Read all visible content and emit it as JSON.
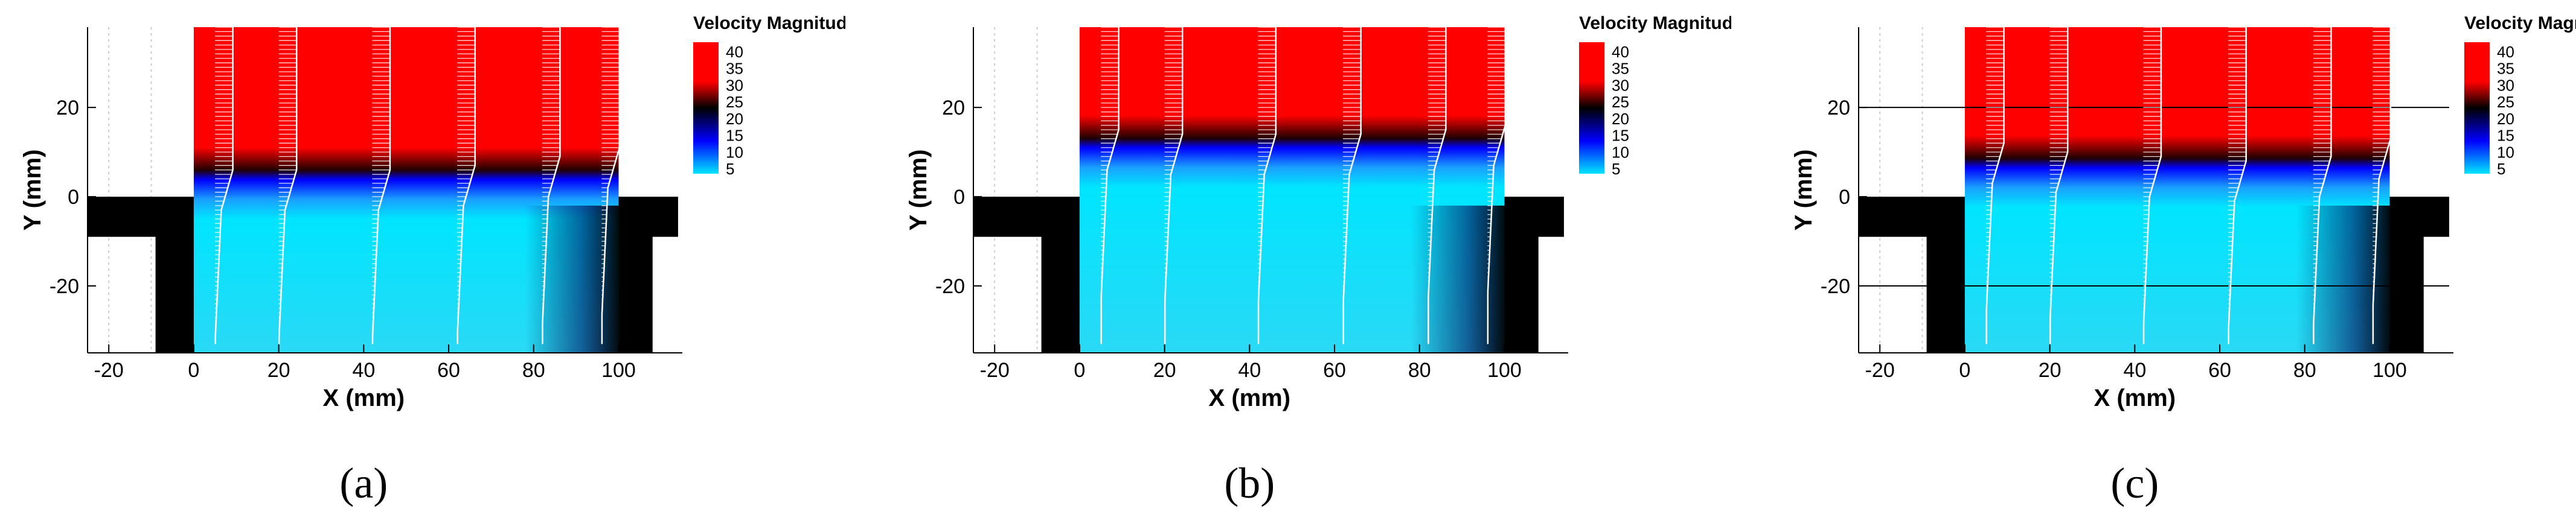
{
  "chart_data": [
    {
      "type": "heatmap",
      "panel_label": "(a)",
      "xlabel": "X (mm)",
      "ylabel": "Y (mm)",
      "xlim": [
        -25,
        115
      ],
      "ylim": [
        -35,
        38
      ],
      "xticks": [
        -20,
        0,
        20,
        40,
        60,
        80,
        100
      ],
      "yticks": [
        -20,
        0,
        20
      ],
      "legend": {
        "title": "Velocity Magnitude",
        "ticks": [
          40,
          35,
          30,
          25,
          20,
          15,
          10,
          5
        ],
        "placement": "top-right"
      },
      "shear_layer_y": [
        3,
        3,
        3,
        4,
        6,
        8
      ],
      "horizontal_lines": false,
      "profile_stations_x": [
        5,
        20,
        42,
        62,
        82,
        96
      ]
    },
    {
      "type": "heatmap",
      "panel_label": "(b)",
      "xlabel": "X (mm)",
      "ylabel": "Y (mm)",
      "xlim": [
        -25,
        115
      ],
      "ylim": [
        -35,
        38
      ],
      "xticks": [
        -20,
        0,
        20,
        40,
        60,
        80,
        100
      ],
      "yticks": [
        -20,
        0,
        20
      ],
      "legend": {
        "title": "Velocity Magnitude",
        "ticks": [
          40,
          35,
          30,
          25,
          20,
          15,
          10,
          5
        ],
        "placement": "top-right"
      },
      "shear_layer_y": [
        12,
        11,
        11,
        11,
        12,
        13
      ],
      "horizontal_lines": false,
      "profile_stations_x": [
        5,
        20,
        42,
        62,
        82,
        96
      ]
    },
    {
      "type": "heatmap",
      "panel_label": "(c)",
      "xlabel": "X (mm)",
      "ylabel": "Y (mm)",
      "xlim": [
        -25,
        115
      ],
      "ylim": [
        -35,
        38
      ],
      "xticks": [
        -20,
        0,
        20,
        40,
        60,
        80,
        100
      ],
      "yticks": [
        -20,
        0,
        20
      ],
      "legend": {
        "title": "Velocity Magnitude",
        "ticks": [
          40,
          35,
          30,
          25,
          20,
          15,
          10,
          5
        ],
        "placement": "top-right"
      },
      "shear_layer_y": [
        9,
        7,
        6,
        5,
        6,
        10
      ],
      "horizontal_lines": true,
      "profile_stations_x": [
        5,
        20,
        42,
        62,
        82,
        96
      ]
    }
  ],
  "colors": {
    "high": "#ff0000",
    "mid": "#000000",
    "low": "#0000ff",
    "lowest": "#00e5ff",
    "wall": "#000000",
    "profile": "#ffffff"
  }
}
